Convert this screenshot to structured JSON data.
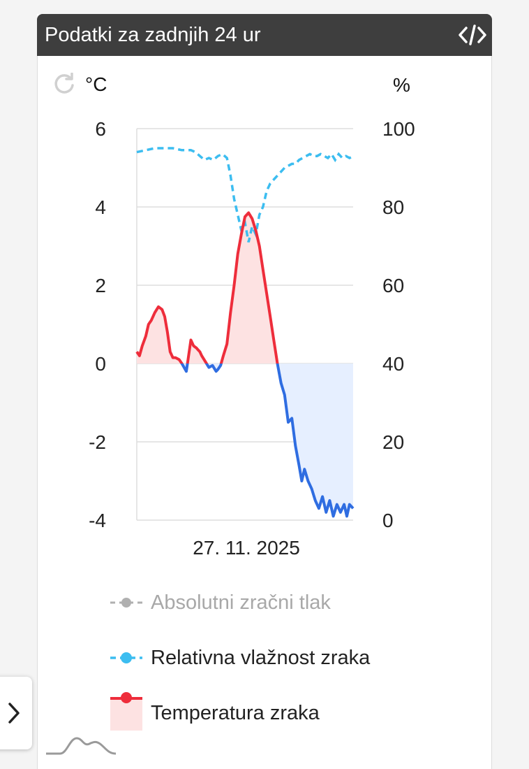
{
  "widget": {
    "title": "Podatki za zadnjih 24 ur",
    "left_unit": "°C",
    "right_unit": "%"
  },
  "icons": {
    "embed": "code-brackets-icon",
    "refresh": "refresh-icon",
    "expand": "chevron-right-icon",
    "thumbnail": "mountain-line-icon"
  },
  "colors": {
    "header_bg": "#3e3e3e",
    "temp_positive": "#ee2d3b",
    "temp_negative": "#2f6de1",
    "temp_positive_fill": "#fde2e2",
    "temp_negative_fill": "#e6efff",
    "humidity": "#3cbdf0",
    "pressure_hidden": "#b0b0b0",
    "grid": "#dddddd"
  },
  "chart_data": {
    "type": "line",
    "xlabel": "27. 11. 2025",
    "x_range_hours": [
      0,
      24
    ],
    "y_left": {
      "unit": "°C",
      "range": [
        -4,
        6
      ],
      "ticks": [
        "6",
        "4",
        "2",
        "0",
        "-2",
        "-4"
      ]
    },
    "y_right": {
      "unit": "%",
      "range": [
        0,
        100
      ],
      "ticks": [
        "100",
        "80",
        "60",
        "40",
        "20",
        "0"
      ]
    },
    "grid": true,
    "legend_position": "bottom",
    "legend": [
      {
        "label": "Absolutni zračni tlak",
        "visible": false
      },
      {
        "label": "Relativna vlažnost zraka",
        "visible": true
      },
      {
        "label": "Temperatura zraka",
        "visible": true
      }
    ],
    "series": [
      {
        "name": "Temperatura zraka",
        "axis": "left",
        "x": [
          0,
          0.3,
          0.6,
          1.0,
          1.3,
          1.6,
          2.0,
          2.4,
          2.8,
          3.1,
          3.4,
          3.7,
          4.0,
          4.3,
          4.7,
          5.0,
          5.5,
          6.0,
          6.3,
          6.6,
          6.8,
          7.0,
          7.2,
          7.6,
          8.0,
          8.4,
          8.8,
          9.0,
          9.3,
          9.6,
          10.0,
          10.4,
          10.8,
          11.2,
          11.6,
          12.0,
          12.4,
          12.8,
          13.2,
          13.6,
          14.0,
          14.4,
          14.8,
          15.2,
          15.6,
          16.0,
          16.4,
          16.8,
          17.2,
          17.6,
          18.0,
          18.3,
          18.6,
          19.0,
          19.4,
          19.8,
          20.2,
          20.6,
          21.0,
          21.4,
          21.8,
          22.2,
          22.6,
          23.0,
          23.3,
          23.6,
          24.0
        ],
        "y": [
          0.3,
          0.2,
          0.45,
          0.7,
          1.0,
          1.1,
          1.3,
          1.45,
          1.38,
          1.2,
          0.8,
          0.3,
          0.15,
          0.15,
          0.1,
          0.0,
          -0.2,
          0.6,
          0.45,
          0.4,
          0.35,
          0.3,
          0.2,
          0.05,
          -0.1,
          -0.05,
          -0.2,
          -0.15,
          -0.05,
          0.2,
          0.5,
          1.3,
          2.0,
          2.8,
          3.3,
          3.75,
          3.85,
          3.7,
          3.4,
          3.0,
          2.4,
          1.8,
          1.2,
          0.6,
          0.0,
          -0.5,
          -0.8,
          -1.5,
          -1.4,
          -2.1,
          -2.6,
          -3.0,
          -2.7,
          -3.0,
          -3.2,
          -3.5,
          -3.7,
          -3.4,
          -3.8,
          -3.5,
          -3.9,
          -3.6,
          -3.8,
          -3.6,
          -3.9,
          -3.6,
          -3.7
        ]
      },
      {
        "name": "Relativna vlažnost zraka",
        "axis": "right",
        "style": "dashed",
        "x": [
          0,
          1.0,
          2.0,
          3.0,
          4.0,
          5.0,
          6.0,
          6.5,
          7.0,
          7.5,
          8.0,
          8.5,
          9.0,
          9.5,
          10.0,
          10.4,
          10.8,
          11.2,
          11.6,
          12.0,
          12.4,
          12.8,
          13.2,
          13.6,
          14.0,
          14.4,
          14.8,
          15.2,
          15.6,
          16.0,
          16.4,
          16.8,
          17.2,
          17.6,
          18.0,
          18.4,
          18.8,
          19.2,
          19.6,
          20.0,
          20.4,
          20.8,
          21.2,
          21.6,
          22.0,
          22.4,
          22.8,
          23.2,
          23.6,
          24.0
        ],
        "y": [
          94,
          94.5,
          95,
          95,
          95,
          94.5,
          94.5,
          94,
          93,
          92,
          92.5,
          92,
          93,
          93.5,
          92.5,
          88,
          82,
          78,
          74,
          76,
          71,
          75,
          73,
          78,
          80,
          84,
          86,
          87,
          88,
          89,
          90,
          90.5,
          91,
          91,
          92,
          92.5,
          93,
          93.5,
          93,
          93,
          93.5,
          93,
          92.5,
          93.5,
          92,
          93.5,
          92.5,
          93,
          92.5,
          93
        ]
      }
    ]
  }
}
